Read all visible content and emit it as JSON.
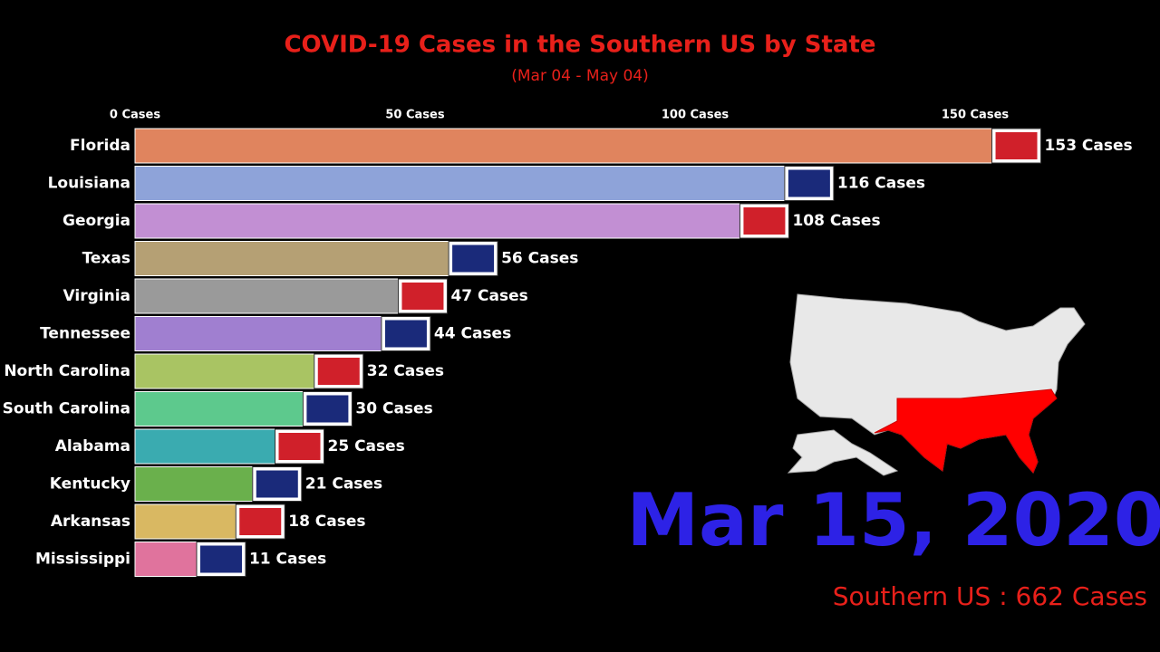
{
  "chart_data": {
    "type": "hbar",
    "title": "COVID-19 Cases in the Southern US by State",
    "subtitle": "(Mar 04 - May 04)",
    "date_label": "Mar 15, 2020",
    "total_label": "Southern US : 662 Cases",
    "categories": [
      "Florida",
      "Louisiana",
      "Georgia",
      "Texas",
      "Virginia",
      "Tennessee",
      "North Carolina",
      "South Carolina",
      "Alabama",
      "Kentucky",
      "Arkansas",
      "Mississippi"
    ],
    "values": [
      153,
      116,
      108,
      56,
      47,
      44,
      32,
      30,
      25,
      21,
      18,
      11
    ],
    "value_labels": [
      "153 Cases",
      "116 Cases",
      "108 Cases",
      "56 Cases",
      "47 Cases",
      "44 Cases",
      "32 Cases",
      "30 Cases",
      "25 Cases",
      "21 Cases",
      "18 Cases",
      "11 Cases"
    ],
    "colors": [
      "#e0845e",
      "#8ea3d9",
      "#c28fd3",
      "#b5a074",
      "#9a9a9a",
      "#a07fd0",
      "#a9c463",
      "#5dc98d",
      "#3aabb0",
      "#6ab04c",
      "#d9b862",
      "#e0739d"
    ],
    "xlim": [
      0,
      160
    ],
    "xticks": [
      {
        "value": 0,
        "label": "0 Cases"
      },
      {
        "value": 50,
        "label": "50 Cases"
      },
      {
        "value": 100,
        "label": "100 Cases"
      },
      {
        "value": 150,
        "label": "150 Cases"
      }
    ]
  }
}
